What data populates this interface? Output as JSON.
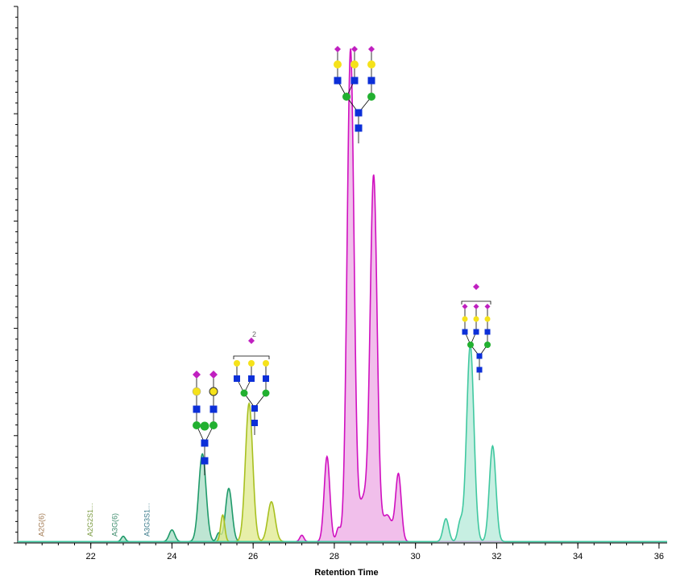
{
  "chart_data": {
    "type": "area",
    "xlabel": "Retention Time",
    "ylabel": "",
    "xlim": [
      20.2,
      36.2
    ],
    "ylim": [
      0,
      100
    ],
    "x_ticks": [
      "22",
      "24",
      "26",
      "28",
      "30",
      "32",
      "34",
      "36"
    ],
    "grid": false,
    "peak_labels": [
      {
        "text": "A2G(6)",
        "x": 20.85,
        "color": "#a07850"
      },
      {
        "text": "A2G2S1...",
        "x": 22.05,
        "color": "#7a9a40"
      },
      {
        "text": "A3G(6)",
        "x": 22.65,
        "color": "#3a8a6a"
      },
      {
        "text": "A3G3S1...",
        "x": 23.45,
        "color": "#3a7a8a"
      }
    ],
    "series": [
      {
        "color": "#1f9a6a",
        "fill": "#a8dcc4",
        "peaks": [
          [
            22.8,
            1.0,
            0.05
          ],
          [
            24.0,
            2.2,
            0.07
          ],
          [
            24.75,
            16.5,
            0.09
          ],
          [
            25.15,
            1.6,
            0.05
          ],
          [
            25.4,
            10.0,
            0.08
          ]
        ]
      },
      {
        "color": "#a8c020",
        "fill": "#dfe98c",
        "peaks": [
          [
            25.25,
            5.0,
            0.05
          ],
          [
            25.9,
            26.0,
            0.09
          ],
          [
            26.45,
            7.5,
            0.09
          ]
        ]
      },
      {
        "color": "#d010c0",
        "fill": "#ecaae4",
        "peaks": [
          [
            27.2,
            1.2,
            0.05
          ],
          [
            27.82,
            16.0,
            0.07
          ],
          [
            28.1,
            2.5,
            0.05
          ],
          [
            28.4,
            92.5,
            0.085
          ],
          [
            28.72,
            8.0,
            0.12
          ],
          [
            28.97,
            68.0,
            0.085
          ],
          [
            29.3,
            5.0,
            0.12
          ],
          [
            29.58,
            12.5,
            0.07
          ]
        ]
      },
      {
        "color": "#40c8a0",
        "fill": "#b4ead8",
        "peaks": [
          [
            30.75,
            4.3,
            0.07
          ],
          [
            31.1,
            3.5,
            0.06
          ],
          [
            31.35,
            37.0,
            0.09
          ],
          [
            31.9,
            18.0,
            0.08
          ]
        ]
      }
    ]
  },
  "glycan_structures": [
    {
      "note": "",
      "x": 24.85
    },
    {
      "note": "2",
      "x": 25.9
    },
    {
      "note": "",
      "x": 28.5
    },
    {
      "note": "",
      "x": 31.5
    }
  ]
}
